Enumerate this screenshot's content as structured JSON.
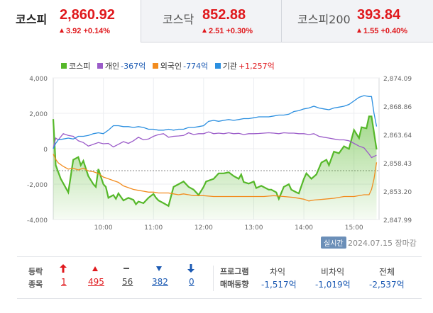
{
  "tabs": [
    {
      "name": "코스피",
      "value": "2,860.92",
      "change": "3.92 +0.14%",
      "active": true
    },
    {
      "name": "코스닥",
      "value": "852.88",
      "change": "2.51 +0.30%",
      "active": false
    },
    {
      "name": "코스피200",
      "value": "393.84",
      "change": "1.55 +0.40%",
      "active": false
    }
  ],
  "legend": [
    {
      "name": "코스피",
      "value": "",
      "color": "#56b82a"
    },
    {
      "name": "개인",
      "value": "-367억",
      "color": "#9b5cc9"
    },
    {
      "name": "외국인",
      "value": "-774억",
      "color": "#f28c1f"
    },
    {
      "name": "기관",
      "value": "+1,257억",
      "color": "#2b8fe0"
    }
  ],
  "chart_data": {
    "type": "line",
    "x_ticks": [
      "10:00",
      "11:00",
      "12:00",
      "13:00",
      "14:00",
      "15:00"
    ],
    "y_left_ticks": [
      "4,000",
      "2,000",
      "0",
      "-2,000",
      "-4,000"
    ],
    "y_right_ticks": [
      "2,874.09",
      "2,868.86",
      "2,863.64",
      "2,858.43",
      "2,853.20",
      "2,847.99"
    ],
    "y_left_range": [
      -4000,
      4000
    ],
    "y_right_range": [
      2847.99,
      2874.09
    ],
    "reference_line": 2857.0,
    "grid": true,
    "legend_position": "top",
    "kospi": [
      [
        9.0,
        2866.5
      ],
      [
        9.05,
        2858.0
      ],
      [
        9.15,
        2855.5
      ],
      [
        9.3,
        2853.0
      ],
      [
        9.4,
        2859.0
      ],
      [
        9.5,
        2859.5
      ],
      [
        9.55,
        2858.0
      ],
      [
        9.6,
        2858.8
      ],
      [
        9.7,
        2856.0
      ],
      [
        9.8,
        2854.5
      ],
      [
        9.85,
        2854.0
      ],
      [
        9.9,
        2857.3
      ],
      [
        10.0,
        2854.5
      ],
      [
        10.05,
        2854.0
      ],
      [
        10.1,
        2852.0
      ],
      [
        10.2,
        2852.5
      ],
      [
        10.25,
        2851.8
      ],
      [
        10.3,
        2852.8
      ],
      [
        10.4,
        2851.5
      ],
      [
        10.5,
        2852.0
      ],
      [
        10.6,
        2851.6
      ],
      [
        10.65,
        2850.8
      ],
      [
        10.7,
        2851.3
      ],
      [
        10.8,
        2851.0
      ],
      [
        10.9,
        2852.0
      ],
      [
        11.0,
        2852.7
      ],
      [
        11.05,
        2852.0
      ],
      [
        11.1,
        2851.5
      ],
      [
        11.2,
        2851.0
      ],
      [
        11.3,
        2850.5
      ],
      [
        11.4,
        2854.0
      ],
      [
        11.5,
        2854.5
      ],
      [
        11.6,
        2855.0
      ],
      [
        11.7,
        2854.0
      ],
      [
        11.8,
        2853.5
      ],
      [
        11.9,
        2852.5
      ],
      [
        12.0,
        2854.0
      ],
      [
        12.05,
        2855.0
      ],
      [
        12.2,
        2855.5
      ],
      [
        12.3,
        2856.5
      ],
      [
        12.4,
        2856.5
      ],
      [
        12.5,
        2856.7
      ],
      [
        12.6,
        2856.0
      ],
      [
        12.7,
        2855.5
      ],
      [
        12.75,
        2856.3
      ],
      [
        12.8,
        2854.9
      ],
      [
        12.9,
        2854.6
      ],
      [
        13.0,
        2855.0
      ],
      [
        13.05,
        2853.8
      ],
      [
        13.15,
        2854.2
      ],
      [
        13.3,
        2853.5
      ],
      [
        13.35,
        2853.5
      ],
      [
        13.45,
        2853.0
      ],
      [
        13.5,
        2851.8
      ],
      [
        13.6,
        2854.0
      ],
      [
        13.7,
        2854.5
      ],
      [
        13.75,
        2853.5
      ],
      [
        13.85,
        2853.0
      ],
      [
        13.9,
        2852.8
      ],
      [
        14.0,
        2855.5
      ],
      [
        14.05,
        2856.5
      ],
      [
        14.15,
        2855.5
      ],
      [
        14.25,
        2856.3
      ],
      [
        14.35,
        2858.5
      ],
      [
        14.45,
        2859.0
      ],
      [
        14.5,
        2858.0
      ],
      [
        14.6,
        2860.5
      ],
      [
        14.7,
        2860.2
      ],
      [
        14.8,
        2861.5
      ],
      [
        14.9,
        2861.0
      ],
      [
        15.0,
        2864.5
      ],
      [
        15.1,
        2863.0
      ],
      [
        15.15,
        2865.0
      ],
      [
        15.25,
        2864.8
      ],
      [
        15.3,
        2867.0
      ],
      [
        15.35,
        2867.0
      ],
      [
        15.4,
        2864.0
      ],
      [
        15.45,
        2860.9
      ]
    ],
    "series": [
      {
        "name": "개인",
        "values": [
          [
            9.0,
            0
          ],
          [
            9.05,
            600
          ],
          [
            9.1,
            500
          ],
          [
            9.2,
            850
          ],
          [
            9.3,
            750
          ],
          [
            9.4,
            700
          ],
          [
            9.5,
            450
          ],
          [
            9.6,
            350
          ],
          [
            9.7,
            150
          ],
          [
            9.8,
            250
          ],
          [
            9.9,
            350
          ],
          [
            10.0,
            280
          ],
          [
            10.1,
            300
          ],
          [
            10.2,
            100
          ],
          [
            10.3,
            250
          ],
          [
            10.4,
            400
          ],
          [
            10.5,
            300
          ],
          [
            10.6,
            450
          ],
          [
            10.7,
            650
          ],
          [
            10.8,
            500
          ],
          [
            10.9,
            550
          ],
          [
            11.0,
            700
          ],
          [
            11.1,
            800
          ],
          [
            11.2,
            850
          ],
          [
            11.3,
            650
          ],
          [
            11.4,
            700
          ],
          [
            11.5,
            720
          ],
          [
            11.6,
            750
          ],
          [
            11.7,
            900
          ],
          [
            11.8,
            800
          ],
          [
            11.9,
            850
          ],
          [
            12.0,
            850
          ],
          [
            12.1,
            950
          ],
          [
            12.2,
            850
          ],
          [
            12.3,
            880
          ],
          [
            12.4,
            850
          ],
          [
            12.5,
            900
          ],
          [
            12.6,
            850
          ],
          [
            12.7,
            870
          ],
          [
            12.8,
            800
          ],
          [
            12.9,
            850
          ],
          [
            13.0,
            850
          ],
          [
            13.1,
            860
          ],
          [
            13.2,
            880
          ],
          [
            13.3,
            900
          ],
          [
            13.4,
            880
          ],
          [
            13.5,
            850
          ],
          [
            13.6,
            900
          ],
          [
            13.7,
            880
          ],
          [
            13.8,
            880
          ],
          [
            13.9,
            850
          ],
          [
            14.0,
            850
          ],
          [
            14.1,
            800
          ],
          [
            14.2,
            850
          ],
          [
            14.3,
            700
          ],
          [
            14.4,
            650
          ],
          [
            14.5,
            600
          ],
          [
            14.6,
            550
          ],
          [
            14.7,
            500
          ],
          [
            14.8,
            500
          ],
          [
            14.9,
            450
          ],
          [
            15.0,
            300
          ],
          [
            15.1,
            150
          ],
          [
            15.2,
            50
          ],
          [
            15.3,
            -300
          ],
          [
            15.35,
            -500
          ],
          [
            15.45,
            -367
          ]
        ]
      },
      {
        "name": "외국인",
        "values": [
          [
            9.0,
            -300
          ],
          [
            9.05,
            -600
          ],
          [
            9.1,
            -800
          ],
          [
            9.2,
            -1000
          ],
          [
            9.3,
            -1150
          ],
          [
            9.4,
            -1100
          ],
          [
            9.5,
            -1200
          ],
          [
            9.6,
            -1100
          ],
          [
            9.7,
            -1250
          ],
          [
            9.8,
            -1300
          ],
          [
            9.9,
            -1400
          ],
          [
            10.0,
            -1600
          ],
          [
            10.1,
            -1700
          ],
          [
            10.2,
            -1800
          ],
          [
            10.3,
            -1900
          ],
          [
            10.4,
            -2100
          ],
          [
            10.5,
            -2200
          ],
          [
            10.6,
            -2300
          ],
          [
            10.7,
            -2350
          ],
          [
            10.8,
            -2400
          ],
          [
            10.9,
            -2450
          ],
          [
            11.0,
            -2450
          ],
          [
            11.1,
            -2500
          ],
          [
            11.2,
            -2500
          ],
          [
            11.3,
            -2500
          ],
          [
            11.4,
            -2550
          ],
          [
            11.5,
            -2600
          ],
          [
            11.6,
            -2550
          ],
          [
            11.7,
            -2600
          ],
          [
            11.8,
            -2650
          ],
          [
            11.9,
            -2650
          ],
          [
            12.0,
            -2650
          ],
          [
            12.2,
            -2700
          ],
          [
            12.4,
            -2700
          ],
          [
            12.6,
            -2700
          ],
          [
            12.8,
            -2700
          ],
          [
            13.0,
            -2700
          ],
          [
            13.2,
            -2700
          ],
          [
            13.4,
            -2650
          ],
          [
            13.6,
            -2700
          ],
          [
            13.8,
            -2750
          ],
          [
            14.0,
            -2850
          ],
          [
            14.1,
            -2950
          ],
          [
            14.2,
            -2900
          ],
          [
            14.4,
            -2850
          ],
          [
            14.6,
            -2800
          ],
          [
            14.8,
            -2700
          ],
          [
            15.0,
            -2700
          ],
          [
            15.2,
            -2600
          ],
          [
            15.3,
            -2600
          ],
          [
            15.35,
            -2300
          ],
          [
            15.4,
            -1700
          ],
          [
            15.45,
            -774
          ]
        ]
      },
      {
        "name": "기관",
        "values": [
          [
            9.0,
            0
          ],
          [
            9.05,
            300
          ],
          [
            9.1,
            500
          ],
          [
            9.2,
            550
          ],
          [
            9.3,
            600
          ],
          [
            9.4,
            550
          ],
          [
            9.5,
            700
          ],
          [
            9.6,
            700
          ],
          [
            9.7,
            750
          ],
          [
            9.8,
            850
          ],
          [
            9.9,
            900
          ],
          [
            10.0,
            850
          ],
          [
            10.1,
            1050
          ],
          [
            10.2,
            1300
          ],
          [
            10.3,
            1300
          ],
          [
            10.4,
            1250
          ],
          [
            10.5,
            1250
          ],
          [
            10.6,
            1200
          ],
          [
            10.7,
            1250
          ],
          [
            10.8,
            1200
          ],
          [
            10.9,
            1100
          ],
          [
            11.0,
            1100
          ],
          [
            11.1,
            1050
          ],
          [
            11.2,
            1050
          ],
          [
            11.3,
            1100
          ],
          [
            11.4,
            1050
          ],
          [
            11.5,
            1100
          ],
          [
            11.6,
            1100
          ],
          [
            11.7,
            1200
          ],
          [
            11.8,
            1200
          ],
          [
            11.9,
            1250
          ],
          [
            12.0,
            1300
          ],
          [
            12.1,
            1550
          ],
          [
            12.2,
            1600
          ],
          [
            12.3,
            1550
          ],
          [
            12.4,
            1600
          ],
          [
            12.5,
            1650
          ],
          [
            12.6,
            1600
          ],
          [
            12.7,
            1650
          ],
          [
            12.8,
            1700
          ],
          [
            12.9,
            1700
          ],
          [
            13.0,
            1750
          ],
          [
            13.1,
            1800
          ],
          [
            13.2,
            1800
          ],
          [
            13.3,
            1800
          ],
          [
            13.4,
            1850
          ],
          [
            13.5,
            1900
          ],
          [
            13.6,
            1900
          ],
          [
            13.7,
            1950
          ],
          [
            13.8,
            2100
          ],
          [
            13.9,
            2150
          ],
          [
            14.0,
            2250
          ],
          [
            14.1,
            2300
          ],
          [
            14.2,
            2400
          ],
          [
            14.3,
            2300
          ],
          [
            14.4,
            2250
          ],
          [
            14.5,
            2200
          ],
          [
            14.6,
            2300
          ],
          [
            14.7,
            2350
          ],
          [
            14.8,
            2400
          ],
          [
            14.9,
            2500
          ],
          [
            15.0,
            2700
          ],
          [
            15.1,
            2900
          ],
          [
            15.2,
            3000
          ],
          [
            15.3,
            2950
          ],
          [
            15.35,
            2950
          ],
          [
            15.4,
            2000
          ],
          [
            15.45,
            1257
          ]
        ]
      }
    ]
  },
  "status": {
    "realtime_tag": "실시간",
    "date": "2024.07.15 장마감"
  },
  "breadth": {
    "label_top": "등락",
    "label_bottom": "종목",
    "limit_up": "1",
    "up": "495",
    "flat": "56",
    "down": "382",
    "limit_down": "0"
  },
  "program": {
    "label_top": "프로그램",
    "label_bottom": "매매동향",
    "headers": [
      "차익",
      "비차익",
      "전체"
    ],
    "values": [
      "-1,517억",
      "-1,019억",
      "-2,537억"
    ]
  }
}
